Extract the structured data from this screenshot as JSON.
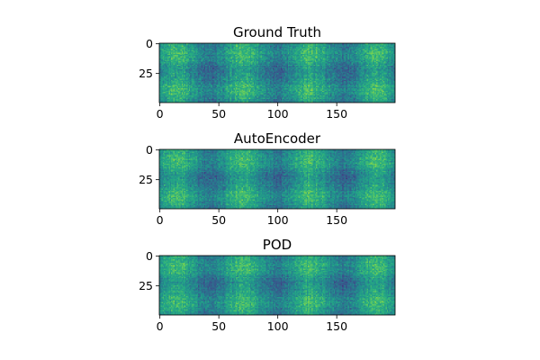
{
  "chart_data": [
    {
      "type": "heatmap",
      "title": "Ground Truth",
      "n_cols": 200,
      "n_rows": 50,
      "xlim": [
        -0.5,
        199.5
      ],
      "ylim": [
        49.5,
        -0.5
      ],
      "xticks": [
        0,
        50,
        100,
        150
      ],
      "yticks": [
        0,
        25
      ],
      "colormap": "viridis",
      "value_range": [
        0.3,
        0.75
      ],
      "grid": false
    },
    {
      "type": "heatmap",
      "title": "AutoEncoder",
      "n_cols": 200,
      "n_rows": 50,
      "xlim": [
        -0.5,
        199.5
      ],
      "ylim": [
        49.5,
        -0.5
      ],
      "xticks": [
        0,
        50,
        100,
        150
      ],
      "yticks": [
        0,
        25
      ],
      "colormap": "viridis",
      "value_range": [
        0.3,
        0.75
      ],
      "grid": false
    },
    {
      "type": "heatmap",
      "title": "POD",
      "n_cols": 200,
      "n_rows": 50,
      "xlim": [
        -0.5,
        199.5
      ],
      "ylim": [
        49.5,
        -0.5
      ],
      "xticks": [
        0,
        50,
        100,
        150
      ],
      "yticks": [
        0,
        25
      ],
      "colormap": "viridis",
      "value_range": [
        0.3,
        0.75
      ],
      "grid": false
    }
  ]
}
